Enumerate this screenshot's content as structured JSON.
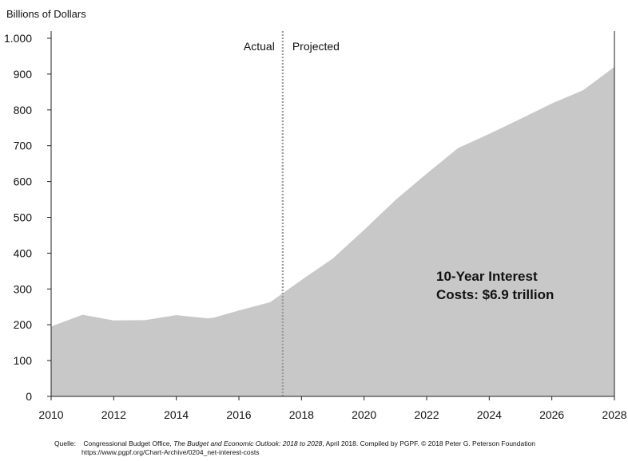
{
  "chart_data": {
    "type": "area",
    "title": "",
    "ylabel": "Billions of Dollars",
    "xlabel": "",
    "x": [
      2010,
      2011,
      2012,
      2013,
      2014,
      2015,
      2015.2,
      2016,
      2017,
      2018,
      2018.5,
      2019,
      2020,
      2021,
      2022,
      2023,
      2024,
      2025,
      2026,
      2027,
      2028
    ],
    "series": [
      {
        "values": [
          195,
          228,
          212,
          213,
          227,
          218,
          220,
          240,
          263,
          325,
          355,
          385,
          465,
          548,
          622,
          693,
          733,
          775,
          818,
          855,
          920
        ]
      }
    ],
    "xlim": [
      2010,
      2028
    ],
    "ylim": [
      0,
      1000
    ],
    "x_ticks": [
      2010,
      2012,
      2014,
      2016,
      2018,
      2020,
      2022,
      2024,
      2026,
      2028
    ],
    "y_ticks": [
      {
        "value": 0,
        "label": "0"
      },
      {
        "value": 100,
        "label": "100"
      },
      {
        "value": 200,
        "label": "200"
      },
      {
        "value": 300,
        "label": "300"
      },
      {
        "value": 400,
        "label": "400"
      },
      {
        "value": 500,
        "label": "500"
      },
      {
        "value": 600,
        "label": "600"
      },
      {
        "value": 700,
        "label": "700"
      },
      {
        "value": 800,
        "label": "800"
      },
      {
        "value": 900,
        "label": "900"
      },
      {
        "value": 1000,
        "label": "1.000"
      }
    ],
    "divider_x": 2017.4,
    "phase_labels": {
      "actual": "Actual",
      "projected": "Projected"
    },
    "annotation": [
      "10-Year Interest",
      "Costs: $6.9 trillion"
    ],
    "grid": false,
    "colors": {
      "area": "#c8c8c8",
      "axis": "#222222",
      "divider": "#999999"
    }
  },
  "source": {
    "label": "Quelle:",
    "text_before_italic": "Congressional Budget Office, ",
    "italic": "The Budget and Economic Outlook: 2018 to 2028",
    "text_after_italic": ", April 2018. Compiled by PGPF. © 2018 Peter G. Peterson Foundation",
    "url": "https://www.pgpf.org/Chart-Archive/0204_net-interest-costs"
  }
}
